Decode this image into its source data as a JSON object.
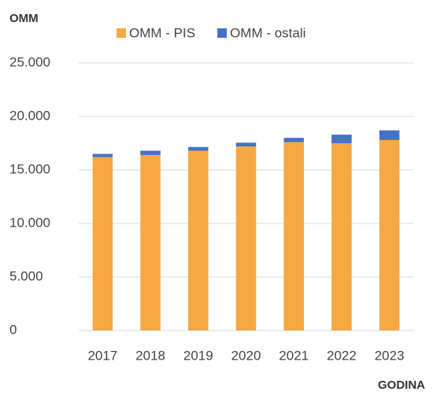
{
  "chart_data": {
    "type": "stacked_bar",
    "y_label": "OMM",
    "x_label": "GODINA",
    "categories": [
      "2017",
      "2018",
      "2019",
      "2020",
      "2021",
      "2022",
      "2023"
    ],
    "series": [
      {
        "name": "OMM - PIS",
        "color": "#f5a843",
        "values": [
          16200,
          16400,
          16800,
          17200,
          17600,
          17500,
          17800
        ]
      },
      {
        "name": "OMM - ostali",
        "color": "#4472c4",
        "values": [
          300,
          400,
          350,
          350,
          400,
          800,
          900
        ]
      }
    ],
    "ylim": [
      0,
      25000
    ],
    "yticks": [
      {
        "value": 0,
        "label": "0"
      },
      {
        "value": 5000,
        "label": "5.000"
      },
      {
        "value": 10000,
        "label": "10.000"
      },
      {
        "value": 15000,
        "label": "15.000"
      },
      {
        "value": 20000,
        "label": "20.000"
      },
      {
        "value": 25000,
        "label": "25.000"
      }
    ],
    "grid": true,
    "legend": "top"
  }
}
